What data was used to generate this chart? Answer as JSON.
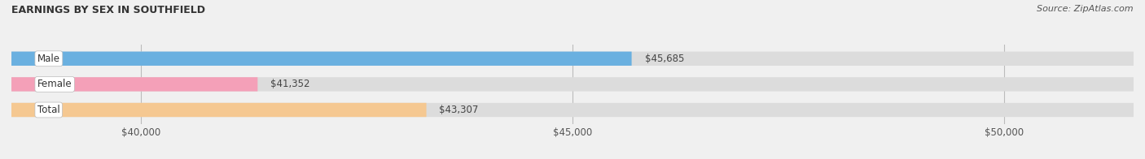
{
  "title": "EARNINGS BY SEX IN SOUTHFIELD",
  "source": "Source: ZipAtlas.com",
  "categories": [
    "Male",
    "Female",
    "Total"
  ],
  "values": [
    45685,
    41352,
    43307
  ],
  "bar_colors": [
    "#6ab0e0",
    "#f4a0b8",
    "#f5c891"
  ],
  "bar_bg_color": "#dcdcdc",
  "xlim": [
    38500,
    51500
  ],
  "xticks": [
    40000,
    45000,
    50000
  ],
  "xtick_labels": [
    "$40,000",
    "$45,000",
    "$50,000"
  ],
  "value_labels": [
    "$45,685",
    "$41,352",
    "$43,307"
  ],
  "bar_height": 0.55,
  "title_fontsize": 9,
  "tick_fontsize": 8.5,
  "label_fontsize": 8.5,
  "value_fontsize": 8.5,
  "source_fontsize": 8,
  "figsize": [
    14.06,
    1.96
  ],
  "dpi": 100
}
